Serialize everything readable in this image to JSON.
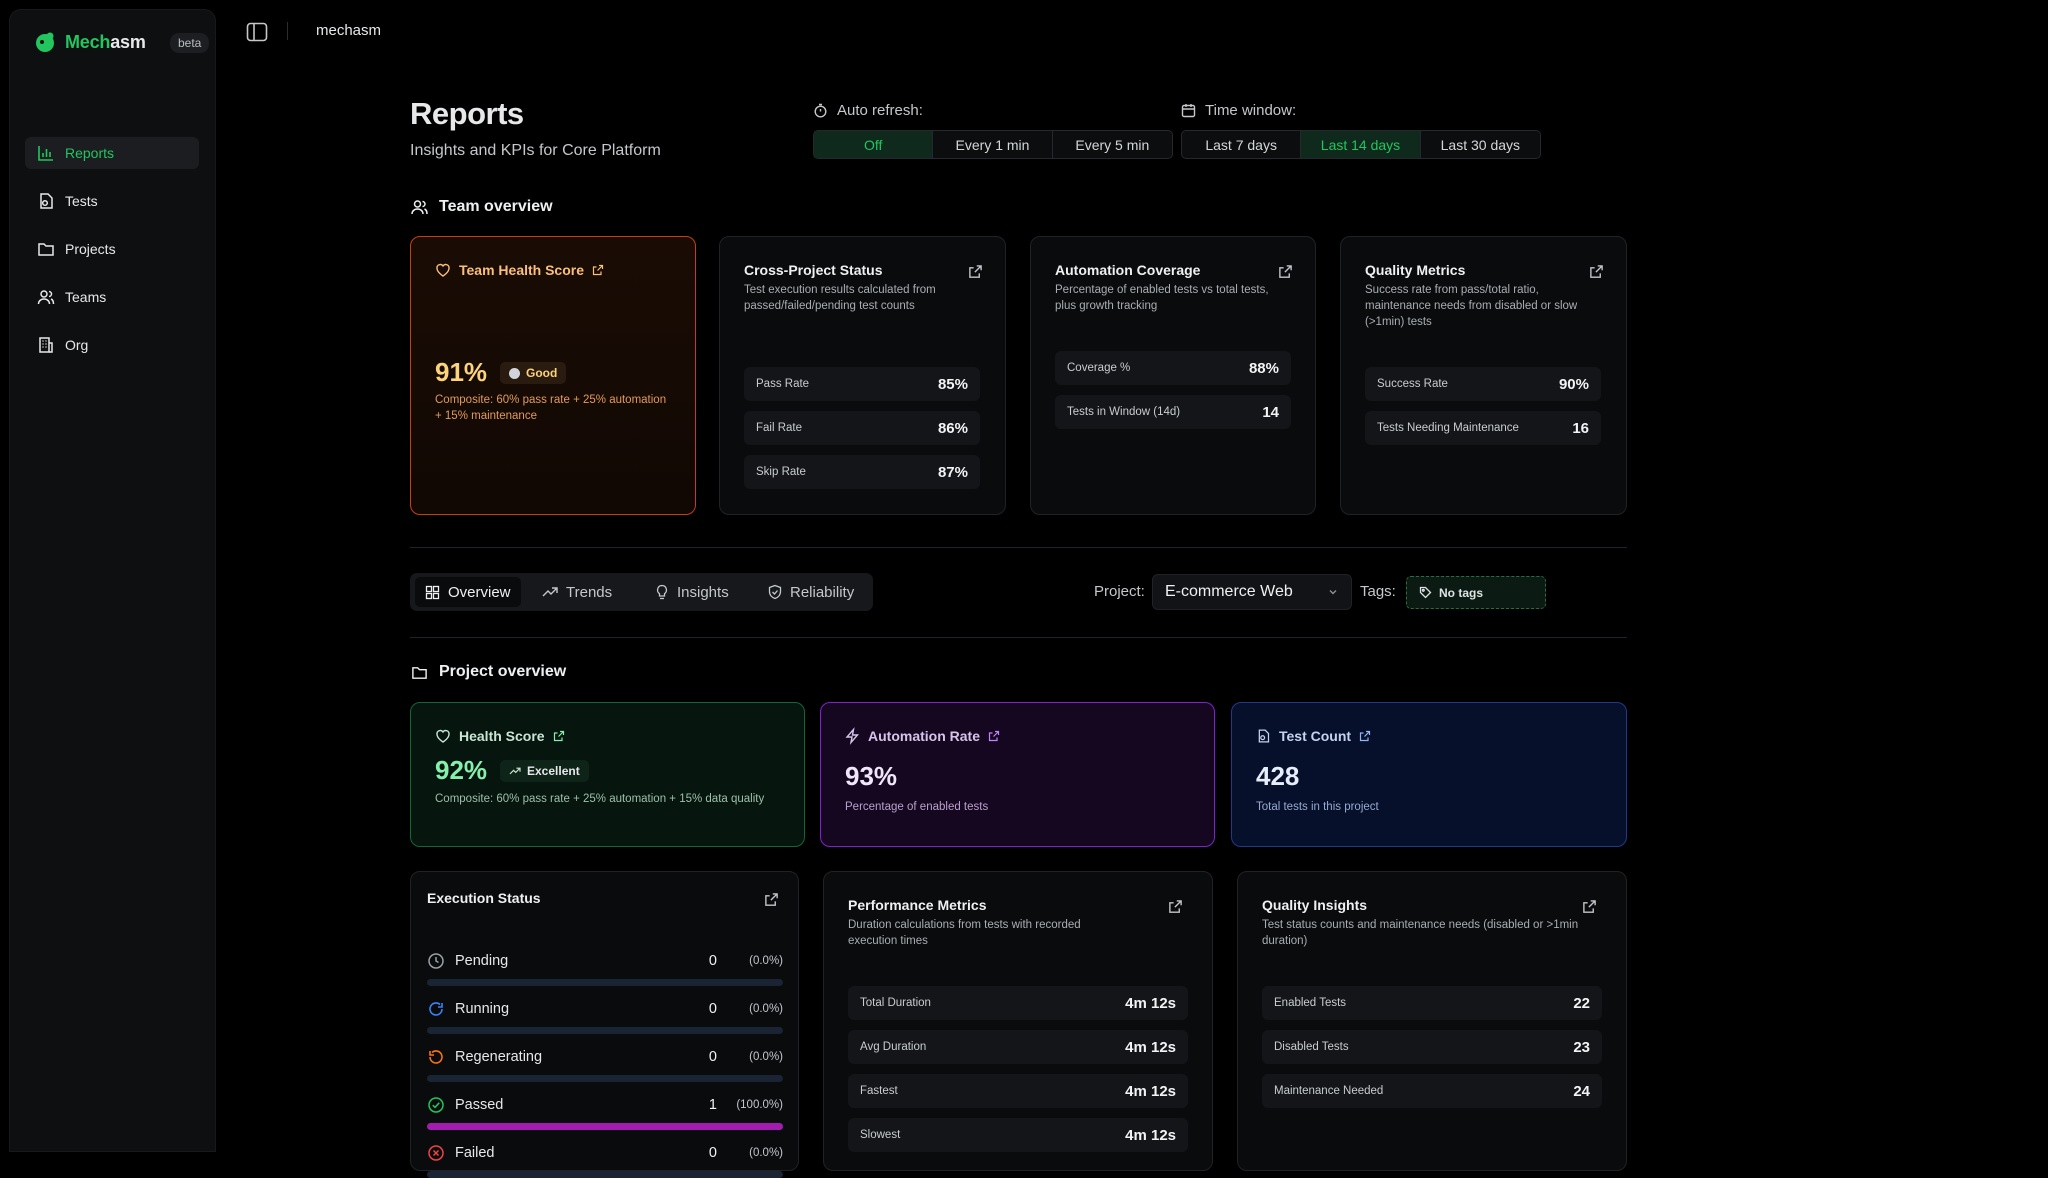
{
  "app": {
    "name_a": "Mech",
    "name_b": "asm",
    "badge": "beta",
    "workspace": "mechasm"
  },
  "sidebar": {
    "items": [
      {
        "label": "Reports",
        "icon": "bar-chart-icon",
        "active": true
      },
      {
        "label": "Tests",
        "icon": "test-file-icon"
      },
      {
        "label": "Projects",
        "icon": "folder-icon"
      },
      {
        "label": "Teams",
        "icon": "users-icon"
      },
      {
        "label": "Org",
        "icon": "building-icon"
      }
    ]
  },
  "header": {
    "title": "Reports",
    "subtitle": "Insights and KPIs for Core Platform"
  },
  "auto_refresh": {
    "label": "Auto refresh:",
    "options": [
      "Off",
      "Every 1 min",
      "Every 5 min"
    ],
    "selected": "Off"
  },
  "time_window": {
    "label": "Time window:",
    "options": [
      "Last 7 days",
      "Last 14 days",
      "Last 30 days"
    ],
    "selected": "Last 14 days"
  },
  "team_overview": {
    "heading": "Team overview",
    "health": {
      "title": "Team Health Score",
      "value": "91%",
      "badge": "Good",
      "desc": "Composite: 60% pass rate + 25% automation + 15% maintenance"
    },
    "cross_project": {
      "title": "Cross-Project Status",
      "desc": "Test execution results calculated from passed/failed/pending test counts",
      "rows": [
        {
          "label": "Pass Rate",
          "value": "85%"
        },
        {
          "label": "Fail Rate",
          "value": "86%"
        },
        {
          "label": "Skip Rate",
          "value": "87%"
        }
      ]
    },
    "automation": {
      "title": "Automation Coverage",
      "desc": "Percentage of enabled tests vs total tests, plus growth tracking",
      "rows": [
        {
          "label": "Coverage %",
          "value": "88%"
        },
        {
          "label": "Tests in Window (14d)",
          "value": "14"
        }
      ]
    },
    "quality": {
      "title": "Quality Metrics",
      "desc": "Success rate from pass/total ratio, maintenance needs from disabled or slow (>1min) tests",
      "rows": [
        {
          "label": "Success Rate",
          "value": "90%"
        },
        {
          "label": "Tests Needing Maintenance",
          "value": "16"
        }
      ]
    }
  },
  "tabs": {
    "items": [
      "Overview",
      "Trends",
      "Insights",
      "Reliability"
    ],
    "selected": "Overview"
  },
  "filters": {
    "project_label": "Project:",
    "project_value": "E-commerce Web",
    "tags_label": "Tags:",
    "tags_value": "No tags"
  },
  "project_overview": {
    "heading": "Project overview",
    "health": {
      "title": "Health Score",
      "value": "92%",
      "badge": "Excellent",
      "desc": "Composite: 60% pass rate + 25% automation + 15% data quality"
    },
    "automation_rate": {
      "title": "Automation Rate",
      "value": "93%",
      "desc": "Percentage of enabled tests"
    },
    "test_count": {
      "title": "Test Count",
      "value": "428",
      "desc": "Total tests in this project"
    }
  },
  "execution_status": {
    "title": "Execution Status",
    "rows": [
      {
        "label": "Pending",
        "count": "0",
        "pct": "(0.0%)",
        "fill": 0,
        "icon": "clock-icon",
        "color": "#9aa0a6"
      },
      {
        "label": "Running",
        "count": "0",
        "pct": "(0.0%)",
        "fill": 0,
        "icon": "refresh-icon",
        "color": "#3b82f6"
      },
      {
        "label": "Regenerating",
        "count": "0",
        "pct": "(0.0%)",
        "fill": 0,
        "icon": "rotate-icon",
        "color": "#f97316"
      },
      {
        "label": "Passed",
        "count": "1",
        "pct": "(100.0%)",
        "fill": 1.0,
        "icon": "check-circle-icon",
        "color": "#22c55e"
      },
      {
        "label": "Failed",
        "count": "0",
        "pct": "(0.0%)",
        "fill": 0,
        "icon": "x-circle-icon",
        "color": "#ef4444"
      }
    ]
  },
  "performance": {
    "title": "Performance Metrics",
    "desc": "Duration calculations from tests with recorded execution times",
    "rows": [
      {
        "label": "Total Duration",
        "value": "4m 12s"
      },
      {
        "label": "Avg Duration",
        "value": "4m 12s"
      },
      {
        "label": "Fastest",
        "value": "4m 12s"
      },
      {
        "label": "Slowest",
        "value": "4m 12s"
      }
    ]
  },
  "quality_insights": {
    "title": "Quality Insights",
    "desc": "Test status counts and maintenance needs (disabled or >1min duration)",
    "rows": [
      {
        "label": "Enabled Tests",
        "value": "22"
      },
      {
        "label": "Disabled Tests",
        "value": "23"
      },
      {
        "label": "Maintenance Needed",
        "value": "24"
      }
    ]
  },
  "colors": {
    "accent": "#22c55e",
    "team_health_border": "#c2410c",
    "project_health_border": "#166534",
    "automation_border": "#7e22ce",
    "test_count_border": "#1e3a8a",
    "passed_bar": "#a21caf"
  }
}
